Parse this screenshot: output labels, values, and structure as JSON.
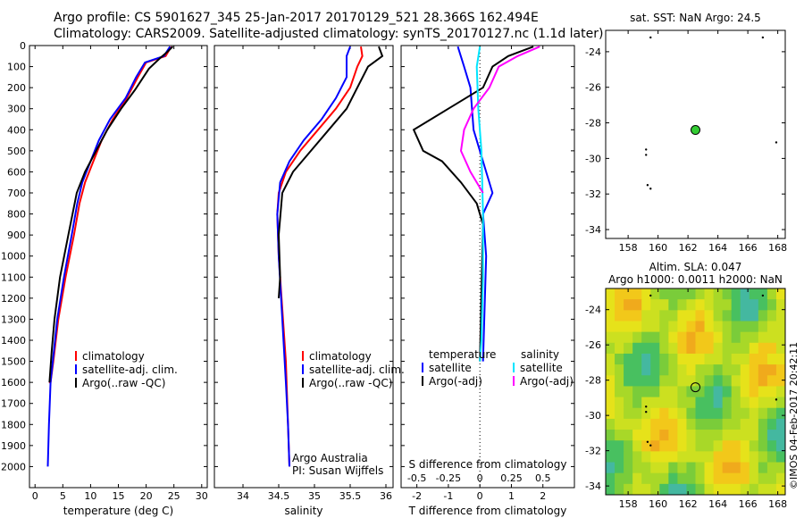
{
  "title_line1": "Argo profile: CS 5901627_345 25-Jan-2017 20170129_521 28.366S 162.494E",
  "title_line2": "Climatology: CARS2009. Satellite-adjusted climatology: synTS_20170127.nc (1.1d later)",
  "sst_title": "sat. SST: NaN Argo: 24.5",
  "sla_title1": "Altim. SLA: 0.047",
  "sla_title2": "Argo h1000: 0.0011 h2000: NaN",
  "side_label": "©IMOS 04-Feb-2017 20:42:11",
  "colors": {
    "clim": "#ff0000",
    "sat": "#0000ff",
    "argo": "#000000",
    "sat_s": "#00e5ff",
    "argo_s": "#ff00ff",
    "float_dot": "#33cc33"
  },
  "chart_data": [
    {
      "type": "line",
      "name": "temperature_profile",
      "xlabel": "temperature (deg C)",
      "ylabel": "",
      "xlim": [
        -1,
        31
      ],
      "ylim": [
        2100,
        0
      ],
      "xticks": [
        0,
        5,
        10,
        15,
        20,
        25,
        30
      ],
      "yticks": [
        0,
        100,
        200,
        300,
        400,
        500,
        600,
        700,
        800,
        900,
        1000,
        1100,
        1200,
        1300,
        1400,
        1500,
        1600,
        1700,
        1800,
        1900,
        2000
      ],
      "legend": [
        "climatology",
        "satellite-adj. clim.",
        "Argo(..raw -QC)"
      ],
      "series": [
        {
          "name": "climatology",
          "color": "red",
          "x": [
            24.5,
            23.5,
            20,
            18.5,
            16.5,
            14,
            12,
            10.5,
            9,
            8,
            7,
            5.5,
            4.2,
            3.3,
            2.8,
            2.5
          ],
          "y": [
            5,
            50,
            80,
            150,
            250,
            350,
            450,
            550,
            650,
            750,
            900,
            1100,
            1300,
            1500,
            1600,
            1600
          ]
        },
        {
          "name": "satellite-adj. clim.",
          "color": "blue",
          "x": [
            24.3,
            23.2,
            19.8,
            18.2,
            16.3,
            13.5,
            11.5,
            10,
            8.5,
            7.6,
            6.6,
            5.2,
            4,
            3.2,
            2.8,
            2.5,
            2.3
          ],
          "y": [
            5,
            50,
            80,
            150,
            250,
            350,
            450,
            550,
            650,
            750,
            900,
            1100,
            1300,
            1500,
            1600,
            1800,
            2000
          ]
        },
        {
          "name": "Argo(..raw -QC)",
          "color": "black",
          "x": [
            24.8,
            23.8,
            22.5,
            20.5,
            18,
            15.5,
            13,
            11,
            9,
            7.5,
            6,
            4.5,
            3.5,
            3,
            2.6
          ],
          "y": [
            5,
            30,
            60,
            110,
            210,
            300,
            400,
            500,
            600,
            700,
            900,
            1100,
            1300,
            1450,
            1600
          ]
        }
      ]
    },
    {
      "type": "line",
      "name": "salinity_profile",
      "xlabel": "salinity",
      "ylabel": "",
      "xlim": [
        33.6,
        36.1
      ],
      "xticks": [
        34,
        34.5,
        35,
        35.5,
        36
      ],
      "ylim": [
        2100,
        0
      ],
      "legend": [
        "climatology",
        "satellite-adj. clim.",
        "Argo(..raw -QC)"
      ],
      "annotation": [
        "Argo Australia",
        "PI: Susan Wijffels"
      ],
      "series": [
        {
          "name": "climatology",
          "color": "red",
          "x": [
            35.65,
            35.67,
            35.6,
            35.5,
            35.3,
            35.05,
            34.8,
            34.6,
            34.5,
            34.48,
            34.5,
            34.52,
            34.56,
            34.6,
            34.63,
            34.65
          ],
          "y": [
            5,
            50,
            100,
            200,
            300,
            400,
            500,
            600,
            700,
            800,
            1000,
            1100,
            1300,
            1500,
            1800,
            2000
          ]
        },
        {
          "name": "satellite-adj. clim.",
          "color": "blue",
          "x": [
            35.5,
            35.45,
            35.45,
            35.3,
            35.1,
            34.85,
            34.65,
            34.52,
            34.48,
            34.5,
            34.55,
            34.6,
            34.63,
            34.65
          ],
          "y": [
            5,
            50,
            150,
            250,
            350,
            450,
            550,
            650,
            800,
            1000,
            1300,
            1600,
            1800,
            2000
          ]
        },
        {
          "name": "Argo(..raw -QC)",
          "color": "black",
          "x": [
            35.9,
            35.95,
            35.75,
            35.6,
            35.45,
            35.2,
            34.95,
            34.7,
            34.55,
            34.5,
            34.52,
            34.5
          ],
          "y": [
            5,
            50,
            100,
            200,
            300,
            400,
            500,
            600,
            700,
            900,
            1100,
            1200
          ]
        }
      ]
    },
    {
      "type": "line",
      "name": "difference_profile",
      "xlabel": "T difference from climatology",
      "xlabel_top": "S difference from climatology",
      "xlim": [
        -2.5,
        3
      ],
      "xticks": [
        -2,
        -1,
        0,
        1,
        2
      ],
      "xticks_top": [
        "-0.5",
        "-0.25",
        "0",
        "0.25",
        "0.5"
      ],
      "ylim": [
        2100,
        0
      ],
      "legend_headers": [
        "temperature",
        "salinity"
      ],
      "legend": [
        "satellite",
        "Argo(-adj)",
        "satellite",
        "Argo(-adj)"
      ],
      "series": [
        {
          "name": "temperature satellite",
          "color": "blue",
          "x": [
            -0.7,
            -0.5,
            -0.3,
            -0.2,
            0.2,
            0.4,
            0.1,
            0.2,
            0.1
          ],
          "y": [
            5,
            100,
            200,
            400,
            600,
            700,
            800,
            1000,
            1500
          ]
        },
        {
          "name": "temperature Argo(-adj)",
          "color": "black",
          "x": [
            1.7,
            0.9,
            0.4,
            0.1,
            -1,
            -2.1,
            -1.8,
            -1.2,
            -0.6,
            -0.1,
            0.1,
            0
          ],
          "y": [
            5,
            50,
            100,
            200,
            300,
            400,
            500,
            550,
            650,
            750,
            850,
            1500
          ]
        },
        {
          "name": "salinity satellite",
          "color": "cyan",
          "x": [
            0,
            -0.1,
            -0.05,
            0.05,
            0.1,
            0.1,
            0.05,
            0
          ],
          "y": [
            5,
            100,
            300,
            500,
            800,
            1100,
            1400,
            1500
          ]
        },
        {
          "name": "salinity Argo(-adj)",
          "color": "magenta",
          "x": [
            1.9,
            1.2,
            0.6,
            0.3,
            -0.2,
            -0.5,
            -0.6,
            -0.3,
            0.1
          ],
          "y": [
            5,
            50,
            100,
            200,
            300,
            400,
            500,
            600,
            700
          ]
        }
      ]
    },
    {
      "type": "scatter",
      "name": "sst_map",
      "xlim": [
        156.5,
        168.5
      ],
      "ylim": [
        -34.5,
        -22.8
      ],
      "xticks": [
        158,
        160,
        162,
        164,
        166,
        168
      ],
      "yticks": [
        -24,
        -26,
        -28,
        -30,
        -32,
        -34
      ],
      "float_position": [
        162.5,
        -28.4
      ]
    },
    {
      "type": "heatmap",
      "name": "sla_map",
      "xlim": [
        156.5,
        168.5
      ],
      "ylim": [
        -34.5,
        -22.8
      ],
      "xticks": [
        158,
        160,
        162,
        164,
        166,
        168
      ],
      "yticks": [
        -24,
        -26,
        -28,
        -30,
        -32,
        -34
      ],
      "float_position": [
        162.5,
        -28.4
      ]
    }
  ]
}
